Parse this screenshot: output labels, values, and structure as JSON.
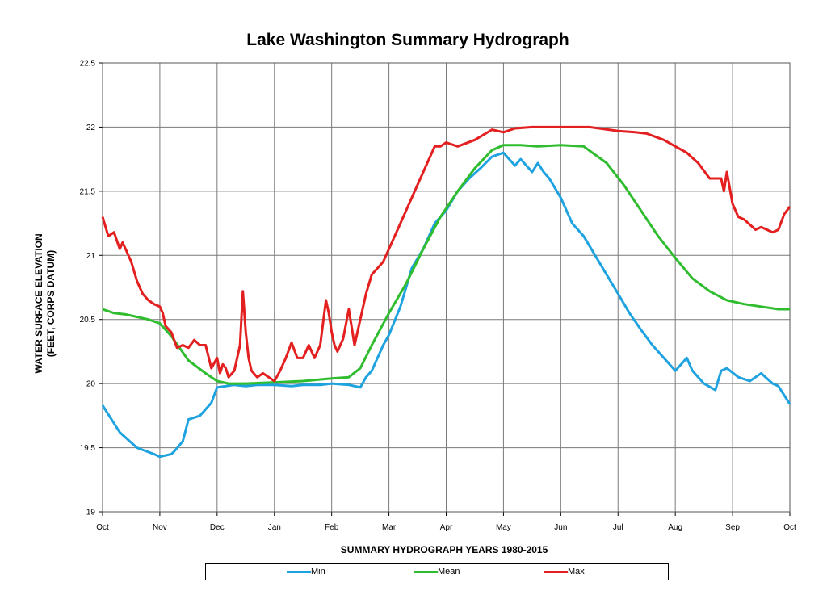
{
  "chart_data": {
    "type": "line",
    "title": "Lake Washington Summary Hydrograph",
    "xlabel": "SUMMARY HYDROGRAPH YEARS 1980-2015",
    "ylabel_lines": [
      "WATER SURFACE ELEVATION",
      "(FEET, CORPS DATUM)"
    ],
    "x_tick_labels": [
      "Oct",
      "Nov",
      "Dec",
      "Jan",
      "Feb",
      "Mar",
      "Apr",
      "May",
      "Jun",
      "Jul",
      "Aug",
      "Sep",
      "Oct"
    ],
    "y_ticks": [
      19,
      19.5,
      20,
      20.5,
      21,
      21.5,
      22,
      22.5
    ],
    "ylim": [
      19,
      22.5
    ],
    "xlim": [
      0,
      12
    ],
    "grid": true,
    "legend_position": "bottom",
    "series": [
      {
        "name": "Min",
        "color": "#1ea3e0",
        "x": [
          0.0,
          0.3,
          0.6,
          0.9,
          1.0,
          1.2,
          1.25,
          1.4,
          1.5,
          1.7,
          1.9,
          2.0,
          2.3,
          2.5,
          2.7,
          3.0,
          3.3,
          3.5,
          3.8,
          4.0,
          4.3,
          4.5,
          4.6,
          4.7,
          4.9,
          5.0,
          5.2,
          5.4,
          5.6,
          5.8,
          6.0,
          6.2,
          6.4,
          6.6,
          6.8,
          7.0,
          7.1,
          7.2,
          7.3,
          7.5,
          7.6,
          7.7,
          7.8,
          8.0,
          8.2,
          8.4,
          8.6,
          8.8,
          9.0,
          9.2,
          9.4,
          9.6,
          9.8,
          10.0,
          10.2,
          10.3,
          10.5,
          10.7,
          10.8,
          10.9,
          11.1,
          11.3,
          11.5,
          11.7,
          11.8,
          12.0
        ],
        "y": [
          19.83,
          19.62,
          19.5,
          19.45,
          19.43,
          19.45,
          19.47,
          19.55,
          19.72,
          19.75,
          19.85,
          19.97,
          19.99,
          19.98,
          19.99,
          19.99,
          19.98,
          19.99,
          19.99,
          20.0,
          19.99,
          19.97,
          20.05,
          20.1,
          20.3,
          20.38,
          20.6,
          20.9,
          21.05,
          21.25,
          21.35,
          21.5,
          21.6,
          21.68,
          21.77,
          21.8,
          21.75,
          21.7,
          21.75,
          21.65,
          21.72,
          21.65,
          21.6,
          21.45,
          21.25,
          21.15,
          21.0,
          20.85,
          20.7,
          20.55,
          20.42,
          20.3,
          20.2,
          20.1,
          20.2,
          20.1,
          20.0,
          19.95,
          20.1,
          20.12,
          20.05,
          20.02,
          20.08,
          20.0,
          19.98,
          19.84
        ]
      },
      {
        "name": "Mean",
        "color": "#2fbd2f",
        "x": [
          0.0,
          0.2,
          0.4,
          0.6,
          0.8,
          1.0,
          1.2,
          1.5,
          1.8,
          2.0,
          2.2,
          2.5,
          3.0,
          3.5,
          4.0,
          4.3,
          4.5,
          4.7,
          5.0,
          5.3,
          5.6,
          5.9,
          6.2,
          6.5,
          6.8,
          7.0,
          7.3,
          7.6,
          8.0,
          8.4,
          8.8,
          9.1,
          9.4,
          9.7,
          10.0,
          10.3,
          10.6,
          10.9,
          11.2,
          11.5,
          11.8,
          12.0
        ],
        "y": [
          20.58,
          20.55,
          20.54,
          20.52,
          20.5,
          20.47,
          20.37,
          20.18,
          20.08,
          20.02,
          20.0,
          20.0,
          20.01,
          20.02,
          20.04,
          20.05,
          20.12,
          20.3,
          20.55,
          20.78,
          21.05,
          21.3,
          21.5,
          21.68,
          21.82,
          21.86,
          21.86,
          21.85,
          21.86,
          21.85,
          21.72,
          21.55,
          21.35,
          21.15,
          20.98,
          20.82,
          20.72,
          20.65,
          20.62,
          20.6,
          20.58,
          20.58
        ]
      },
      {
        "name": "Max",
        "color": "#e41f1f",
        "x": [
          0.0,
          0.1,
          0.2,
          0.3,
          0.35,
          0.4,
          0.5,
          0.6,
          0.7,
          0.8,
          0.9,
          1.0,
          1.05,
          1.1,
          1.2,
          1.3,
          1.4,
          1.5,
          1.6,
          1.7,
          1.8,
          1.9,
          2.0,
          2.05,
          2.1,
          2.15,
          2.2,
          2.3,
          2.4,
          2.45,
          2.5,
          2.55,
          2.6,
          2.7,
          2.8,
          2.9,
          3.0,
          3.1,
          3.2,
          3.3,
          3.4,
          3.5,
          3.6,
          3.7,
          3.8,
          3.9,
          3.95,
          4.0,
          4.05,
          4.1,
          4.2,
          4.3,
          4.4,
          4.5,
          4.6,
          4.7,
          4.8,
          4.9,
          5.0,
          5.2,
          5.5,
          5.8,
          5.9,
          6.0,
          6.2,
          6.5,
          6.8,
          7.0,
          7.2,
          7.5,
          8.0,
          8.5,
          9.0,
          9.3,
          9.5,
          9.8,
          10.0,
          10.2,
          10.4,
          10.6,
          10.8,
          10.85,
          10.9,
          11.0,
          11.1,
          11.2,
          11.4,
          11.5,
          11.7,
          11.8,
          11.9,
          12.0
        ],
        "y": [
          21.3,
          21.15,
          21.18,
          21.05,
          21.1,
          21.05,
          20.95,
          20.8,
          20.7,
          20.65,
          20.62,
          20.6,
          20.55,
          20.45,
          20.4,
          20.28,
          20.3,
          20.28,
          20.34,
          20.3,
          20.3,
          20.12,
          20.2,
          20.08,
          20.15,
          20.12,
          20.05,
          20.1,
          20.3,
          20.72,
          20.4,
          20.2,
          20.1,
          20.05,
          20.08,
          20.05,
          20.02,
          20.1,
          20.2,
          20.32,
          20.2,
          20.2,
          20.3,
          20.2,
          20.3,
          20.65,
          20.55,
          20.4,
          20.3,
          20.25,
          20.35,
          20.58,
          20.3,
          20.5,
          20.7,
          20.85,
          20.9,
          20.95,
          21.05,
          21.25,
          21.55,
          21.85,
          21.85,
          21.88,
          21.85,
          21.9,
          21.98,
          21.96,
          21.99,
          22.0,
          22.0,
          22.0,
          21.97,
          21.96,
          21.95,
          21.9,
          21.85,
          21.8,
          21.72,
          21.6,
          21.6,
          21.5,
          21.65,
          21.4,
          21.3,
          21.28,
          21.2,
          21.22,
          21.18,
          21.2,
          21.32,
          21.38
        ]
      }
    ]
  }
}
